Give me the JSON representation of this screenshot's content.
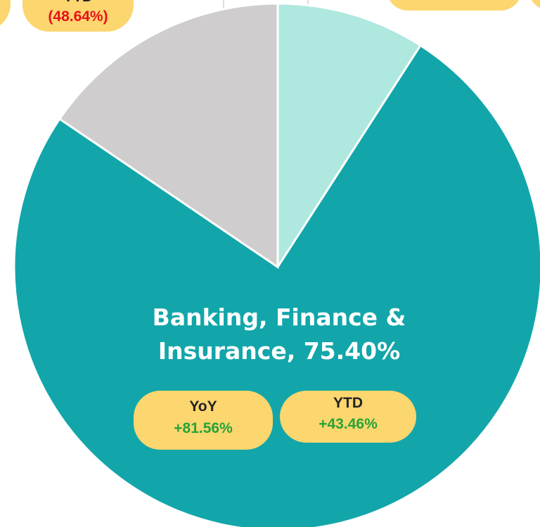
{
  "chart_data": {
    "type": "pie",
    "labels": [
      null,
      "Banking, Finance & Insurance, 75.40%",
      null
    ],
    "values": [
      9.1,
      75.4,
      15.5
    ],
    "value_labels": [
      null,
      "75.40%",
      null
    ],
    "colors": [
      "#aee8df",
      "#12a6aa",
      "#cfcdce"
    ],
    "start_angle": 0,
    "direction": "clockwise",
    "badges": [
      {
        "label": "YTD",
        "value": "(48.64%)",
        "color": "#e8111c"
      },
      {
        "label": "YoY",
        "value": "+81.56%",
        "color": "#27a339"
      },
      {
        "label": "YTD",
        "value": "+43.46%",
        "color": "#27a339"
      }
    ]
  }
}
